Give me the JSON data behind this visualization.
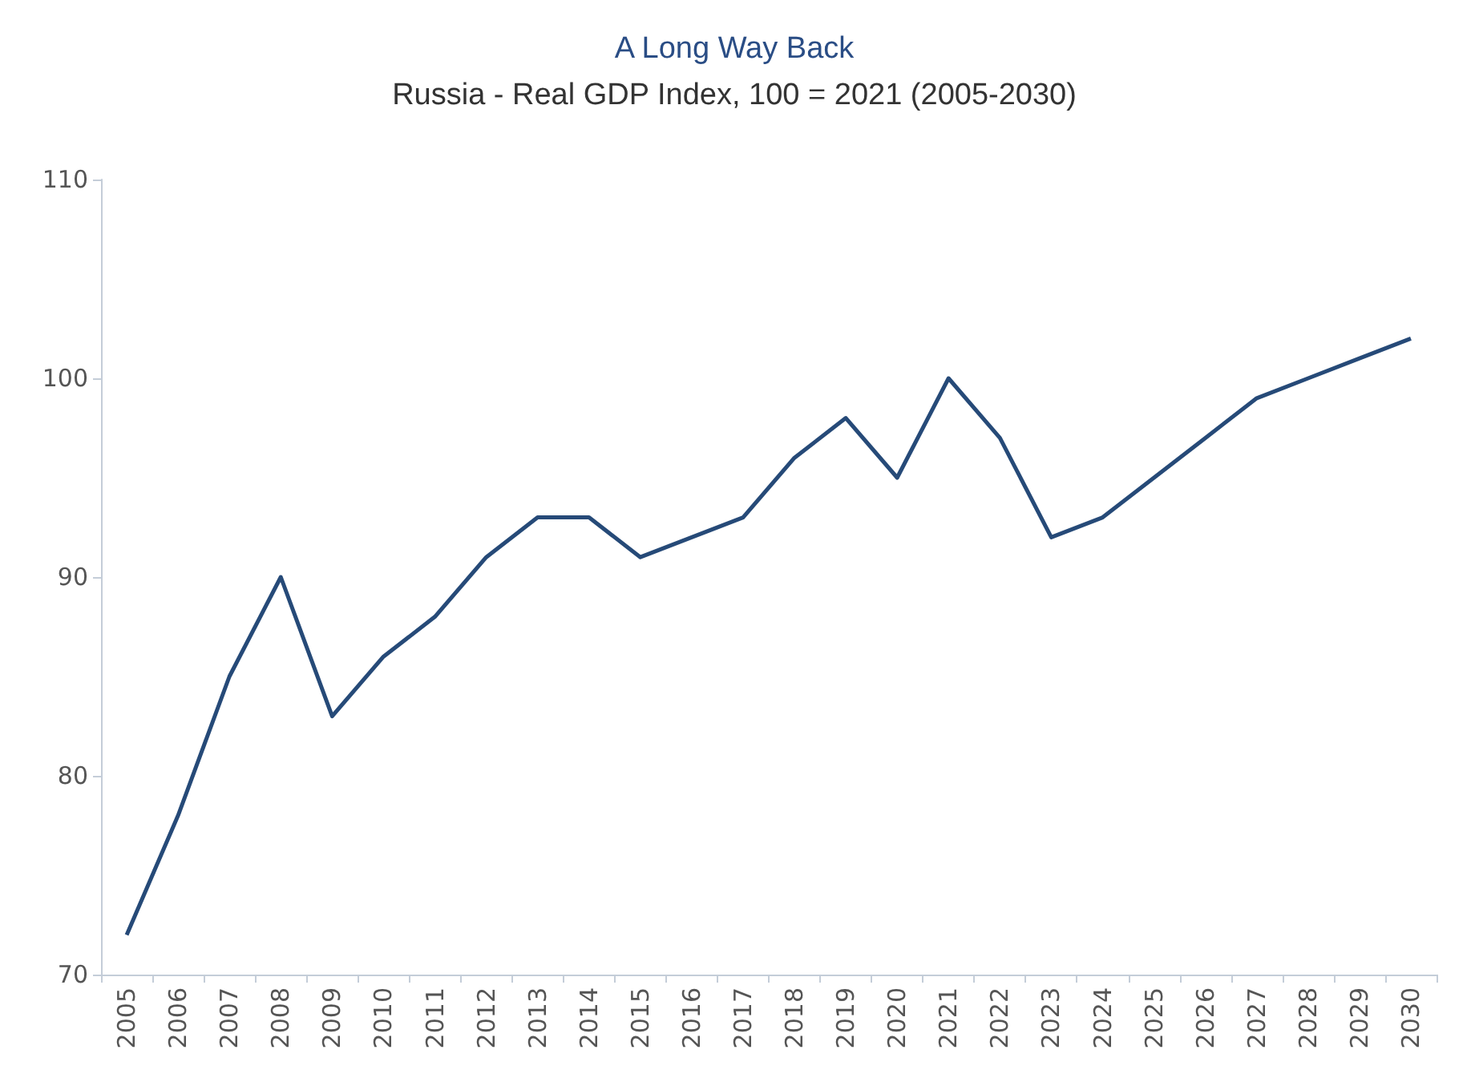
{
  "chart_data": {
    "type": "line",
    "title": "A Long Way Back",
    "subtitle": "Russia - Real GDP Index, 100 = 2021 (2005-2030)",
    "categories": [
      "2005",
      "2006",
      "2007",
      "2008",
      "2009",
      "2010",
      "2011",
      "2012",
      "2013",
      "2014",
      "2015",
      "2016",
      "2017",
      "2018",
      "2019",
      "2020",
      "2021",
      "2022",
      "2023",
      "2024",
      "2025",
      "2026",
      "2027",
      "2028",
      "2029",
      "2030"
    ],
    "series": [
      {
        "color": "#264a78",
        "values": [
          72,
          78,
          85,
          90,
          83,
          86,
          88,
          91,
          93,
          93,
          91,
          92,
          93,
          96,
          98,
          95,
          100,
          97,
          92,
          93,
          95,
          97,
          99,
          100,
          101,
          102
        ]
      }
    ],
    "ylim": [
      70,
      110
    ],
    "yticks": [
      70,
      80,
      90,
      100,
      110
    ],
    "grid": false,
    "marker": "none",
    "line_style": "solid"
  }
}
